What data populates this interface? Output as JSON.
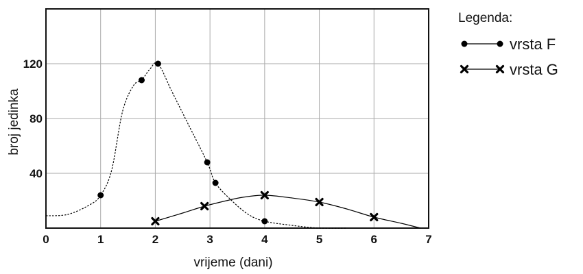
{
  "chart_data": {
    "type": "line",
    "xlabel": "vrijeme (dani)",
    "ylabel": "broj jedinka",
    "xlim": [
      0,
      7
    ],
    "ylim": [
      0,
      160
    ],
    "x_ticks": [
      "0",
      "1",
      "2",
      "3",
      "4",
      "5",
      "6",
      "7"
    ],
    "y_ticks": [
      "40",
      "80",
      "120"
    ],
    "grid": true,
    "legend": {
      "title": "Legenda:",
      "placement": "right",
      "entries": [
        "vrsta F",
        "vrsta G"
      ]
    },
    "series": [
      {
        "name": "vrsta F",
        "marker": "dot",
        "line": "dotted",
        "points": [
          {
            "x": 1.0,
            "y": 24
          },
          {
            "x": 1.75,
            "y": 108
          },
          {
            "x": 2.05,
            "y": 120
          },
          {
            "x": 2.95,
            "y": 48
          },
          {
            "x": 3.1,
            "y": 33
          },
          {
            "x": 4.0,
            "y": 5
          }
        ],
        "curve": [
          [
            0,
            9
          ],
          [
            0.4,
            10
          ],
          [
            0.8,
            17
          ],
          [
            1.0,
            24
          ],
          [
            1.2,
            42
          ],
          [
            1.4,
            85
          ],
          [
            1.6,
            104
          ],
          [
            1.75,
            108
          ],
          [
            1.9,
            116
          ],
          [
            2.05,
            120
          ],
          [
            2.3,
            100
          ],
          [
            2.6,
            76
          ],
          [
            2.95,
            48
          ],
          [
            3.1,
            33
          ],
          [
            3.4,
            20
          ],
          [
            3.7,
            10
          ],
          [
            4.0,
            5
          ],
          [
            4.5,
            2
          ],
          [
            5.0,
            0
          ],
          [
            5.5,
            0
          ]
        ]
      },
      {
        "name": "vrsta G",
        "marker": "x",
        "line": "solid",
        "points": [
          {
            "x": 2.0,
            "y": 5
          },
          {
            "x": 2.9,
            "y": 16
          },
          {
            "x": 4.0,
            "y": 24
          },
          {
            "x": 5.0,
            "y": 19
          },
          {
            "x": 6.0,
            "y": 8
          }
        ],
        "curve": [
          [
            2.0,
            5
          ],
          [
            2.5,
            11
          ],
          [
            2.9,
            16
          ],
          [
            3.3,
            20
          ],
          [
            3.6,
            22.5
          ],
          [
            4.0,
            24
          ],
          [
            4.5,
            22
          ],
          [
            5.0,
            19
          ],
          [
            5.5,
            14
          ],
          [
            6.0,
            8
          ],
          [
            6.5,
            3.5
          ],
          [
            6.85,
            0
          ]
        ]
      }
    ]
  }
}
